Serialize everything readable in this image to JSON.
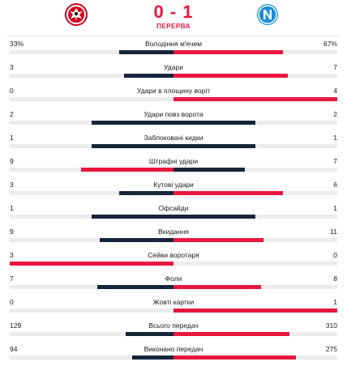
{
  "match": {
    "score": "0 - 1",
    "status": "ПЕРЕРВА",
    "home_logo": "eintracht-frankfurt-crest",
    "away_logo": "napoli-crest"
  },
  "colors": {
    "winner": "#e8173f",
    "loser": "#16263a",
    "track": "#ececef",
    "accent": "#e8173f"
  },
  "stats": [
    {
      "label": "Володіння м'ячем",
      "home": "33%",
      "away": "67%",
      "home_n": 33,
      "away_n": 67
    },
    {
      "label": "Удари",
      "home": "3",
      "away": "7",
      "home_n": 3,
      "away_n": 7
    },
    {
      "label": "Удари в площину воріт",
      "home": "0",
      "away": "4",
      "home_n": 0,
      "away_n": 4
    },
    {
      "label": "Удари повз ворота",
      "home": "2",
      "away": "2",
      "home_n": 2,
      "away_n": 2
    },
    {
      "label": "Заблоковані кидки",
      "home": "1",
      "away": "1",
      "home_n": 1,
      "away_n": 1
    },
    {
      "label": "Штрафні удари",
      "home": "9",
      "away": "7",
      "home_n": 9,
      "away_n": 7
    },
    {
      "label": "Кутові удари",
      "home": "3",
      "away": "6",
      "home_n": 3,
      "away_n": 6
    },
    {
      "label": "Офсайди",
      "home": "1",
      "away": "1",
      "home_n": 1,
      "away_n": 1
    },
    {
      "label": "Вкидання",
      "home": "9",
      "away": "11",
      "home_n": 9,
      "away_n": 11
    },
    {
      "label": "Сейви воротаря",
      "home": "3",
      "away": "0",
      "home_n": 3,
      "away_n": 0
    },
    {
      "label": "Фоли",
      "home": "7",
      "away": "8",
      "home_n": 7,
      "away_n": 8
    },
    {
      "label": "Жовті картки",
      "home": "0",
      "away": "1",
      "home_n": 0,
      "away_n": 1
    },
    {
      "label": "Всього передач",
      "home": "129",
      "away": "310",
      "home_n": 129,
      "away_n": 310
    },
    {
      "label": "Виконано передач",
      "home": "94",
      "away": "275",
      "home_n": 94,
      "away_n": 275
    }
  ]
}
